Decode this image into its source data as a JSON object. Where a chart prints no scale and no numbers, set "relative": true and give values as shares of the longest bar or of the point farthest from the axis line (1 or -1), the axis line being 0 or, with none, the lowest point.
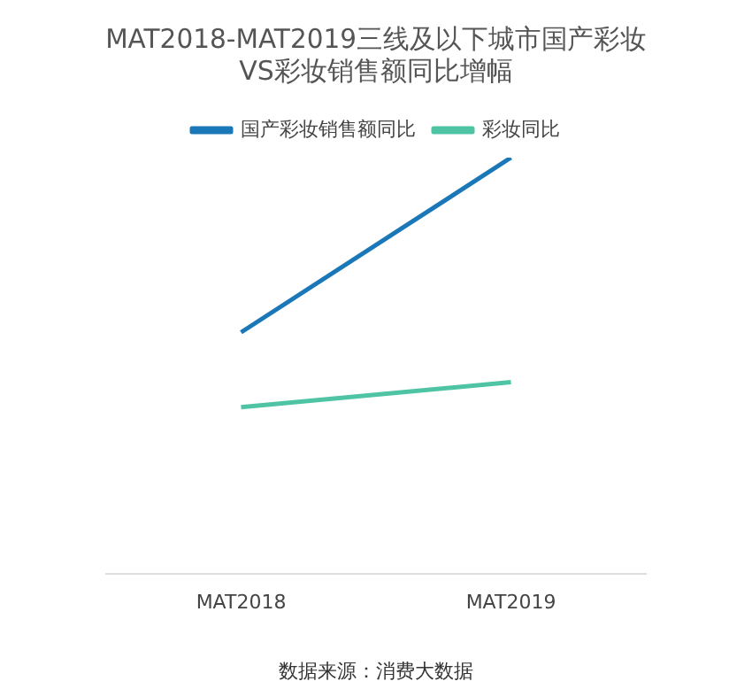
{
  "chart_data": {
    "type": "line",
    "title": "MAT2018-MAT2019三线及以下城市国产彩妆\nVS彩妆销售额同比增幅",
    "categories": [
      "MAT2018",
      "MAT2019"
    ],
    "series": [
      {
        "name": "国产彩妆销售额同比",
        "color": "#1a78b8",
        "values": [
          0.58,
          1
        ]
      },
      {
        "name": "彩妆同比",
        "color": "#4fc4a4",
        "values": [
          0.4,
          0.46
        ]
      }
    ],
    "relative": true,
    "legend": "top",
    "marker": "none",
    "grid": false,
    "annotations": [
      "数据来源：消费大数据"
    ]
  }
}
